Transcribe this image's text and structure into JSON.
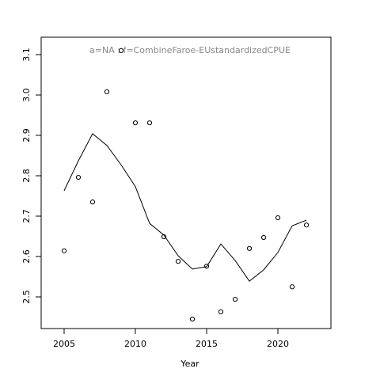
{
  "chart_data": {
    "type": "line",
    "annotation": "a=NA : f=CombineFaroe-EUstandardizedCPUE",
    "x_label": "Year",
    "x": [
      2005,
      2006,
      2007,
      2008,
      2009,
      2010,
      2011,
      2012,
      2013,
      2014,
      2015,
      2016,
      2017,
      2018,
      2019,
      2020,
      2021,
      2022
    ],
    "series": [
      {
        "style": "points",
        "color": "#000000",
        "values": [
          2.614,
          2.796,
          2.735,
          3.008,
          3.11,
          2.931,
          2.931,
          2.649,
          2.588,
          2.445,
          2.576,
          2.463,
          2.494,
          2.62,
          2.647,
          2.696,
          2.525,
          2.678
        ]
      },
      {
        "style": "line",
        "color": "#000000",
        "values": [
          2.763,
          2.837,
          2.904,
          2.875,
          2.827,
          2.773,
          2.682,
          2.653,
          2.602,
          2.569,
          2.575,
          2.631,
          2.59,
          2.539,
          2.567,
          2.61,
          2.676,
          2.69
        ]
      }
    ],
    "xlim": [
      2003.39,
      2023.72
    ],
    "xticks": [
      2005,
      2010,
      2015,
      2020
    ],
    "ylim": [
      2.4216,
      3.1431
    ],
    "yticks": [
      2.5,
      2.6,
      2.7,
      2.8,
      2.9,
      3.0,
      3.1
    ]
  }
}
